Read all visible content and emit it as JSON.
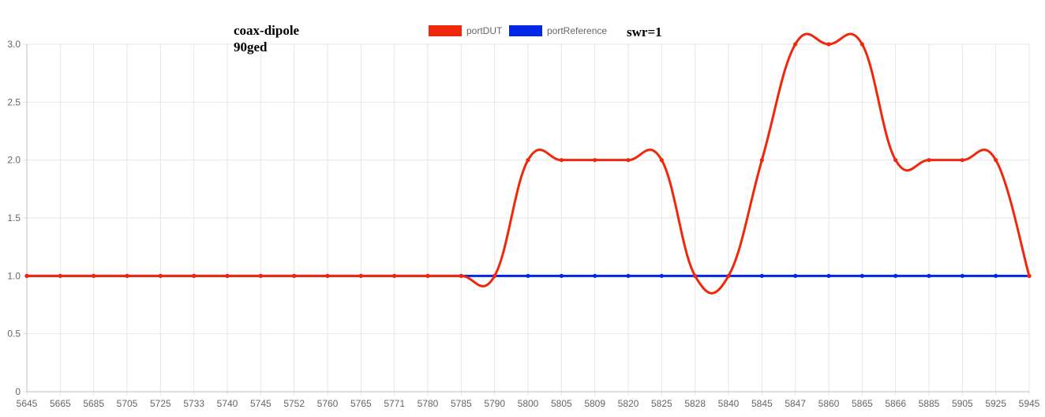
{
  "chart_data": {
    "type": "line",
    "categories": [
      "5645",
      "5665",
      "5685",
      "5705",
      "5725",
      "5733",
      "5740",
      "5745",
      "5752",
      "5760",
      "5765",
      "5771",
      "5780",
      "5785",
      "5790",
      "5800",
      "5805",
      "5809",
      "5820",
      "5825",
      "5828",
      "5840",
      "5845",
      "5847",
      "5860",
      "5865",
      "5866",
      "5885",
      "5905",
      "5925",
      "5945"
    ],
    "series": [
      {
        "name": "portDUT",
        "color": "#f0270b",
        "values": [
          1,
          1,
          1,
          1,
          1,
          1,
          1,
          1,
          1,
          1,
          1,
          1,
          1,
          1,
          1,
          2,
          2,
          2,
          2,
          2,
          1,
          1,
          2,
          3,
          3,
          3,
          2,
          2,
          2,
          2,
          1
        ]
      },
      {
        "name": "portReference",
        "color": "#0027e8",
        "values": [
          1,
          1,
          1,
          1,
          1,
          1,
          1,
          1,
          1,
          1,
          1,
          1,
          1,
          1,
          1,
          1,
          1,
          1,
          1,
          1,
          1,
          1,
          1,
          1,
          1,
          1,
          1,
          1,
          1,
          1,
          1
        ]
      }
    ],
    "ylim": [
      0,
      3
    ],
    "yticks": [
      "0",
      "0.5",
      "1.0",
      "1.5",
      "2.0",
      "2.5",
      "3.0"
    ],
    "grid": true,
    "legend_position": "top-center",
    "annotations": {
      "label1": "coax-dipole",
      "label2": "90ged",
      "label3": "swr=1"
    }
  }
}
